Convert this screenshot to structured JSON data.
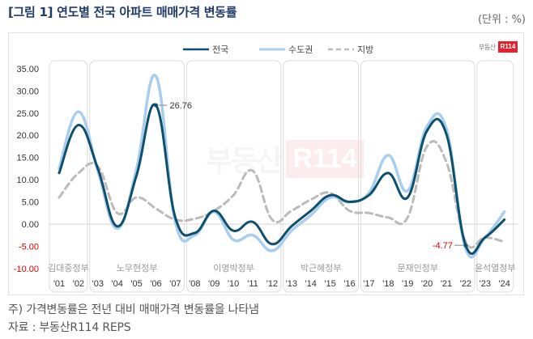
{
  "header": {
    "title": "[그림 1] 연도별 전국 아파트 매매가격 변동률",
    "unit": "(단위 : %)"
  },
  "logo": {
    "text": "부동산",
    "badge": "R114"
  },
  "watermark": {
    "text": "부동산",
    "badge": "R114"
  },
  "footer": {
    "note": "주) 가격변동률은 전년 대비 매매가격 변동률을 나타냄",
    "source": "자료 : 부동산R114 REPS"
  },
  "colors": {
    "national": "#0d4f6e",
    "capital": "#a9cdee",
    "regional": "#bbbbbb",
    "negative_tick": "#e00000",
    "positive_tick": "#333333",
    "panel_border": "#dddddd",
    "annotation_negative": "#e00000"
  },
  "chart_data": {
    "type": "line",
    "title": "연도별 전국 아파트 매매가격 변동률",
    "xlabel": "",
    "ylabel": "(단위 : %)",
    "ylim": [
      -10,
      35
    ],
    "yticks": [
      "35.00",
      "30.00",
      "25.00",
      "20.00",
      "15.00",
      "10.00",
      "5.00",
      "0.00",
      "-5.00",
      "-10.00"
    ],
    "x": [
      "'01",
      "'02",
      "'03",
      "'04",
      "'05",
      "'06",
      "'07",
      "'08",
      "'09",
      "'10",
      "'11",
      "'12",
      "'13",
      "'14",
      "'15",
      "'16",
      "'17",
      "'18",
      "'19",
      "'20",
      "'21",
      "'22",
      "'23",
      "'24"
    ],
    "legend": {
      "position": "top-center",
      "entries": [
        "전국",
        "수도권",
        "지방"
      ]
    },
    "series": [
      {
        "name": "전국",
        "style": "solid",
        "values": [
          11.5,
          22.3,
          12.5,
          -0.5,
          11.0,
          26.76,
          1.5,
          -2.0,
          3.0,
          -1.5,
          0.5,
          -4.5,
          -0.5,
          3.0,
          6.5,
          5.0,
          6.5,
          11.5,
          6.0,
          21.0,
          20.3,
          -4.77,
          -3.0,
          1.0
        ]
      },
      {
        "name": "수도권",
        "style": "solid",
        "values": [
          12.5,
          25.3,
          12.0,
          -1.0,
          12.5,
          33.3,
          0.5,
          -2.5,
          2.8,
          -3.5,
          -2.5,
          -6.0,
          -1.5,
          2.0,
          6.0,
          5.0,
          7.0,
          15.5,
          7.5,
          22.0,
          21.5,
          -5.5,
          -3.0,
          2.8
        ]
      },
      {
        "name": "지방",
        "style": "dashed",
        "values": [
          6.0,
          11.5,
          13.0,
          2.5,
          6.0,
          3.5,
          1.0,
          1.2,
          3.0,
          6.5,
          12.0,
          1.0,
          3.0,
          5.5,
          7.0,
          3.0,
          2.5,
          1.5,
          1.5,
          17.5,
          14.0,
          -4.0,
          -3.0,
          -4.0
        ]
      }
    ],
    "annotations": [
      {
        "label": "26.76",
        "series": "전국",
        "x": "'06",
        "value": 26.76
      },
      {
        "label": "-4.77",
        "series": "전국",
        "x": "'22",
        "value": -4.77
      }
    ],
    "eras": [
      {
        "name": "김대중정부",
        "years": [
          "'01",
          "'02"
        ]
      },
      {
        "name": "노무현정부",
        "years": [
          "'03",
          "'04",
          "'05",
          "'06",
          "'07"
        ]
      },
      {
        "name": "이명박정부",
        "years": [
          "'08",
          "'09",
          "'10",
          "'11",
          "'12"
        ]
      },
      {
        "name": "박근혜정부",
        "years": [
          "'13",
          "'14",
          "'15",
          "'16"
        ]
      },
      {
        "name": "문재인정부",
        "years": [
          "'17",
          "'18",
          "'19",
          "'20",
          "'21",
          "'22"
        ]
      },
      {
        "name": "윤석열정부",
        "years": [
          "'23",
          "'24"
        ]
      }
    ]
  }
}
